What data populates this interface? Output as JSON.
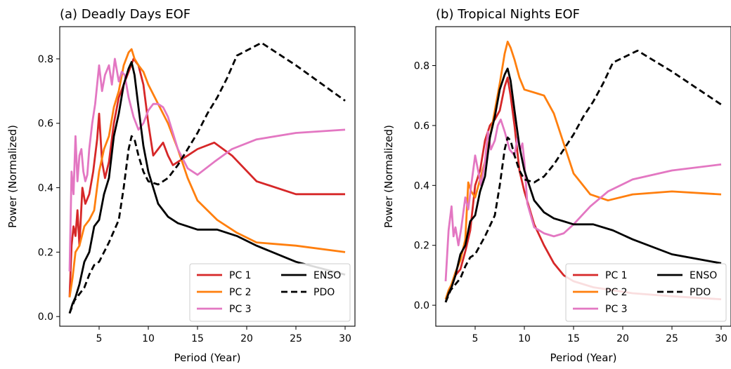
{
  "chart_data": [
    {
      "type": "line",
      "title": "(a) Deadly Days EOF",
      "xlabel": "Period (Year)",
      "ylabel": "Power (Normalized)",
      "xlim": [
        1,
        31
      ],
      "ylim": [
        -0.03,
        0.9
      ],
      "xticks": [
        5,
        10,
        15,
        20,
        25,
        30
      ],
      "yticks": [
        0.0,
        0.2,
        0.4,
        0.6,
        0.8
      ],
      "ytick_labels": [
        "0.0",
        "0.2",
        "0.4",
        "0.6",
        "0.8"
      ],
      "grid": false,
      "legend": "lower-right",
      "legend_columns": 2,
      "series": [
        {
          "name": "PC 1",
          "color": "#d62728",
          "style": "solid",
          "x": [
            2.0,
            2.2,
            2.4,
            2.6,
            2.8,
            3.0,
            3.3,
            3.6,
            4.0,
            4.4,
            4.8,
            5.0,
            5.3,
            5.6,
            6.0,
            6.5,
            7.0,
            7.5,
            8.0,
            8.5,
            9.0,
            9.5,
            10.0,
            10.5,
            11.0,
            11.5,
            12.0,
            12.5,
            13.0,
            14.0,
            15.0,
            16.7,
            18.5,
            21.0,
            25.0,
            30.0
          ],
          "y": [
            0.06,
            0.22,
            0.28,
            0.25,
            0.33,
            0.22,
            0.4,
            0.35,
            0.38,
            0.45,
            0.55,
            0.63,
            0.48,
            0.43,
            0.48,
            0.6,
            0.68,
            0.72,
            0.76,
            0.8,
            0.78,
            0.72,
            0.6,
            0.5,
            0.52,
            0.54,
            0.5,
            0.47,
            0.48,
            0.5,
            0.52,
            0.54,
            0.5,
            0.42,
            0.38,
            0.38
          ]
        },
        {
          "name": "PC 2",
          "color": "#ff7f0e",
          "style": "solid",
          "x": [
            2.0,
            2.3,
            2.6,
            3.0,
            3.5,
            4.0,
            4.5,
            5.0,
            5.5,
            6.0,
            6.5,
            7.0,
            7.5,
            8.0,
            8.3,
            8.6,
            9.0,
            9.5,
            10.0,
            11.0,
            12.0,
            13.0,
            14.0,
            15.0,
            17.0,
            19.0,
            21.0,
            25.0,
            30.0
          ],
          "y": [
            0.06,
            0.12,
            0.2,
            0.22,
            0.28,
            0.3,
            0.33,
            0.45,
            0.52,
            0.56,
            0.65,
            0.7,
            0.78,
            0.82,
            0.83,
            0.8,
            0.78,
            0.76,
            0.72,
            0.66,
            0.6,
            0.52,
            0.43,
            0.36,
            0.3,
            0.26,
            0.23,
            0.22,
            0.2
          ]
        },
        {
          "name": "PC 3",
          "color": "#e377c2",
          "style": "solid",
          "x": [
            2.0,
            2.2,
            2.4,
            2.6,
            2.8,
            3.0,
            3.2,
            3.4,
            3.6,
            3.8,
            4.0,
            4.3,
            4.6,
            5.0,
            5.3,
            5.6,
            6.0,
            6.3,
            6.6,
            7.0,
            7.3,
            7.6,
            8.0,
            8.5,
            9.0,
            9.5,
            10.0,
            10.5,
            11.0,
            11.5,
            12.0,
            13.0,
            14.0,
            15.0,
            16.7,
            18.5,
            21.0,
            25.0,
            30.0
          ],
          "y": [
            0.14,
            0.45,
            0.38,
            0.56,
            0.42,
            0.5,
            0.52,
            0.45,
            0.42,
            0.44,
            0.52,
            0.6,
            0.66,
            0.78,
            0.7,
            0.75,
            0.78,
            0.72,
            0.8,
            0.73,
            0.76,
            0.75,
            0.68,
            0.62,
            0.58,
            0.6,
            0.64,
            0.66,
            0.66,
            0.65,
            0.62,
            0.52,
            0.46,
            0.44,
            0.48,
            0.52,
            0.55,
            0.57,
            0.58
          ]
        },
        {
          "name": "ENSO",
          "color": "#000000",
          "style": "solid",
          "x": [
            2.0,
            2.3,
            2.6,
            3.0,
            3.5,
            4.0,
            4.5,
            5.0,
            5.5,
            6.0,
            6.5,
            7.0,
            7.5,
            8.0,
            8.3,
            8.6,
            9.0,
            9.5,
            10.0,
            11.0,
            12.0,
            13.0,
            14.0,
            15.0,
            17.0,
            19.0,
            21.0,
            25.0,
            30.0
          ],
          "y": [
            0.01,
            0.04,
            0.06,
            0.1,
            0.17,
            0.2,
            0.28,
            0.3,
            0.38,
            0.43,
            0.56,
            0.63,
            0.72,
            0.77,
            0.79,
            0.75,
            0.65,
            0.53,
            0.45,
            0.35,
            0.31,
            0.29,
            0.28,
            0.27,
            0.27,
            0.25,
            0.22,
            0.17,
            0.13
          ]
        },
        {
          "name": "PDO",
          "color": "#000000",
          "style": "dashed",
          "x": [
            2.0,
            2.5,
            3.0,
            3.5,
            4.0,
            4.5,
            5.0,
            6.0,
            7.0,
            7.5,
            8.0,
            8.3,
            8.6,
            9.0,
            9.5,
            10.0,
            11.0,
            12.0,
            13.0,
            14.0,
            15.0,
            16.0,
            17.0,
            18.0,
            19.0,
            21.5,
            25.0,
            30.0
          ],
          "y": [
            0.01,
            0.05,
            0.07,
            0.09,
            0.13,
            0.16,
            0.17,
            0.23,
            0.3,
            0.4,
            0.52,
            0.56,
            0.55,
            0.5,
            0.45,
            0.42,
            0.41,
            0.43,
            0.47,
            0.52,
            0.57,
            0.63,
            0.68,
            0.74,
            0.81,
            0.85,
            0.78,
            0.67
          ]
        }
      ]
    },
    {
      "type": "line",
      "title": "(b) Tropical Nights EOF",
      "xlabel": "Period (Year)",
      "ylabel": "Power (Normalized)",
      "xlim": [
        1,
        31
      ],
      "ylim": [
        -0.07,
        0.93
      ],
      "xticks": [
        5,
        10,
        15,
        20,
        25,
        30
      ],
      "yticks": [
        0.0,
        0.2,
        0.4,
        0.6,
        0.8
      ],
      "ytick_labels": [
        "0.0",
        "0.2",
        "0.4",
        "0.6",
        "0.8"
      ],
      "grid": false,
      "legend": "lower-right",
      "legend_columns": 2,
      "series": [
        {
          "name": "PC 1",
          "color": "#d62728",
          "style": "solid",
          "x": [
            2.0,
            2.5,
            3.0,
            3.5,
            4.0,
            4.5,
            5.0,
            5.5,
            6.0,
            6.5,
            7.0,
            7.5,
            8.0,
            8.3,
            8.6,
            9.0,
            9.5,
            10.0,
            11.0,
            12.0,
            13.0,
            14.0,
            15.0,
            17.0,
            19.0,
            21.0,
            25.0,
            30.0
          ],
          "y": [
            0.02,
            0.05,
            0.1,
            0.12,
            0.18,
            0.25,
            0.4,
            0.45,
            0.55,
            0.6,
            0.62,
            0.65,
            0.73,
            0.76,
            0.7,
            0.6,
            0.45,
            0.38,
            0.27,
            0.2,
            0.14,
            0.1,
            0.08,
            0.06,
            0.05,
            0.04,
            0.03,
            0.02
          ]
        },
        {
          "name": "PC 2",
          "color": "#ff7f0e",
          "style": "solid",
          "x": [
            2.0,
            2.3,
            2.6,
            3.0,
            3.5,
            4.0,
            4.3,
            4.6,
            5.0,
            5.5,
            6.0,
            6.5,
            7.0,
            7.5,
            8.0,
            8.3,
            8.6,
            9.0,
            9.5,
            10.0,
            11.0,
            12.0,
            13.0,
            14.0,
            15.0,
            16.7,
            18.5,
            21.0,
            25.0,
            30.0
          ],
          "y": [
            0.02,
            0.05,
            0.07,
            0.11,
            0.15,
            0.22,
            0.41,
            0.38,
            0.36,
            0.42,
            0.48,
            0.56,
            0.65,
            0.74,
            0.84,
            0.88,
            0.86,
            0.82,
            0.76,
            0.72,
            0.71,
            0.7,
            0.64,
            0.54,
            0.44,
            0.37,
            0.35,
            0.37,
            0.38,
            0.37
          ]
        },
        {
          "name": "PC 3",
          "color": "#e377c2",
          "style": "solid",
          "x": [
            2.0,
            2.3,
            2.6,
            2.8,
            3.0,
            3.3,
            3.6,
            4.0,
            4.3,
            4.6,
            5.0,
            5.3,
            5.6,
            6.0,
            6.3,
            6.6,
            7.0,
            7.3,
            7.6,
            8.0,
            8.5,
            9.0,
            9.3,
            9.6,
            9.8,
            10.0,
            10.3,
            11.0,
            12.0,
            13.0,
            14.0,
            15.0,
            16.7,
            18.5,
            21.0,
            25.0,
            30.0
          ],
          "y": [
            0.08,
            0.25,
            0.33,
            0.23,
            0.26,
            0.2,
            0.26,
            0.36,
            0.32,
            0.4,
            0.5,
            0.45,
            0.4,
            0.48,
            0.58,
            0.52,
            0.55,
            0.6,
            0.62,
            0.58,
            0.52,
            0.5,
            0.56,
            0.52,
            0.54,
            0.48,
            0.34,
            0.26,
            0.24,
            0.23,
            0.24,
            0.27,
            0.33,
            0.38,
            0.42,
            0.45,
            0.47
          ]
        },
        {
          "name": "ENSO",
          "color": "#000000",
          "style": "solid",
          "x": [
            2.0,
            2.3,
            2.6,
            3.0,
            3.5,
            4.0,
            4.5,
            5.0,
            5.5,
            6.0,
            6.5,
            7.0,
            7.5,
            8.0,
            8.3,
            8.6,
            9.0,
            9.5,
            10.0,
            11.0,
            12.0,
            13.0,
            14.0,
            15.0,
            17.0,
            19.0,
            21.0,
            25.0,
            30.0
          ],
          "y": [
            0.01,
            0.04,
            0.06,
            0.1,
            0.17,
            0.2,
            0.28,
            0.3,
            0.38,
            0.43,
            0.56,
            0.63,
            0.72,
            0.77,
            0.79,
            0.75,
            0.65,
            0.53,
            0.45,
            0.35,
            0.31,
            0.29,
            0.28,
            0.27,
            0.27,
            0.25,
            0.22,
            0.17,
            0.14
          ]
        },
        {
          "name": "PDO",
          "color": "#000000",
          "style": "dashed",
          "x": [
            2.0,
            2.5,
            3.0,
            3.5,
            4.0,
            4.5,
            5.0,
            6.0,
            7.0,
            7.5,
            8.0,
            8.3,
            8.6,
            9.0,
            9.5,
            10.0,
            11.0,
            12.0,
            13.0,
            14.0,
            15.0,
            16.0,
            17.0,
            18.0,
            19.0,
            21.5,
            25.0,
            30.0
          ],
          "y": [
            0.01,
            0.05,
            0.07,
            0.09,
            0.13,
            0.16,
            0.17,
            0.23,
            0.3,
            0.4,
            0.52,
            0.56,
            0.55,
            0.5,
            0.45,
            0.42,
            0.41,
            0.43,
            0.47,
            0.52,
            0.57,
            0.63,
            0.68,
            0.74,
            0.81,
            0.85,
            0.78,
            0.67
          ]
        }
      ]
    }
  ]
}
